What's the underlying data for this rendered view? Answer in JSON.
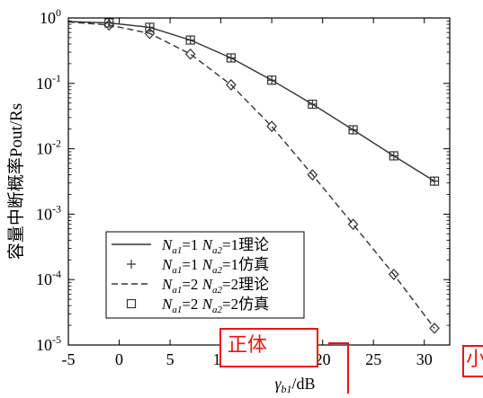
{
  "chart_data": {
    "type": "line",
    "title": "",
    "xlabel": {
      "greek": "γ",
      "sub": "b1",
      "unit": "/dB"
    },
    "ylabel": "容量中断概率Pout/Rs",
    "xlim": [
      -5,
      32.5
    ],
    "ylim": [
      1e-05,
      1
    ],
    "yscale": "log",
    "xticks": [
      -5,
      0,
      5,
      10,
      15,
      20,
      25,
      30
    ],
    "yticks": [
      {
        "value": 1,
        "label": "10",
        "exp": "0"
      },
      {
        "value": 0.1,
        "label": "10",
        "exp": "-1"
      },
      {
        "value": 0.01,
        "label": "10",
        "exp": "-2"
      },
      {
        "value": 0.001,
        "label": "10",
        "exp": "-3"
      },
      {
        "value": 0.0001,
        "label": "10",
        "exp": "-4"
      },
      {
        "value": 1e-05,
        "label": "10",
        "exp": "-5"
      }
    ],
    "grid": false,
    "legend_position": "lower-left",
    "series": [
      {
        "name": "N_a1=1  N_a2=1理论",
        "legend": {
          "n1": "1",
          "n2": "1",
          "kind": "理论"
        },
        "style": "solid",
        "marker": null,
        "x": [
          -5,
          -1,
          3,
          7,
          11,
          15,
          19,
          23,
          27,
          31
        ],
        "y": [
          0.88,
          0.84,
          0.72,
          0.46,
          0.245,
          0.112,
          0.048,
          0.0195,
          0.0078,
          0.0032
        ]
      },
      {
        "name": "N_a1=1  N_a2=1仿真",
        "legend": {
          "n1": "1",
          "n2": "1",
          "kind": "仿真"
        },
        "style": "none",
        "marker": "plus",
        "x": [
          -1,
          3,
          7,
          11,
          15,
          19,
          23,
          27,
          31
        ],
        "y": [
          0.84,
          0.72,
          0.46,
          0.245,
          0.112,
          0.048,
          0.0195,
          0.0078,
          0.0032
        ]
      },
      {
        "name": "N_a1=2  N_a2=2理论",
        "legend": {
          "n1": "2",
          "n2": "2",
          "kind": "理论"
        },
        "style": "dashed",
        "marker": null,
        "x": [
          -5,
          -1,
          3,
          7,
          11,
          15,
          19,
          23,
          27,
          31
        ],
        "y": [
          0.87,
          0.78,
          0.58,
          0.28,
          0.095,
          0.022,
          0.004,
          0.0007,
          0.00012,
          1.8e-05
        ]
      },
      {
        "name": "N_a1=2  N_a2=2仿真",
        "legend": {
          "n1": "2",
          "n2": "2",
          "kind": "仿真"
        },
        "style": "none",
        "marker": "square",
        "x": [
          -1,
          3,
          7,
          11,
          15,
          19,
          23,
          27,
          31
        ],
        "y": [
          0.84,
          0.72,
          0.46,
          0.245,
          0.112,
          0.048,
          0.0195,
          0.0078,
          0.0032
        ]
      },
      {
        "name": "N_a1=2  N_a2=2仿真 (diamond)",
        "legend": null,
        "style": "none",
        "marker": "diamond",
        "x": [
          -1,
          3,
          7,
          11,
          15,
          19,
          23,
          27,
          31
        ],
        "y": [
          0.78,
          0.58,
          0.28,
          0.095,
          0.022,
          0.004,
          0.0007,
          0.00012,
          1.8e-05
        ]
      }
    ],
    "overlay_boxes": [
      {
        "label": "正体"
      },
      {
        "label": "小"
      }
    ],
    "colors": {
      "axis": "#000000",
      "series": "#333333",
      "annotation": "#ee1111"
    }
  }
}
